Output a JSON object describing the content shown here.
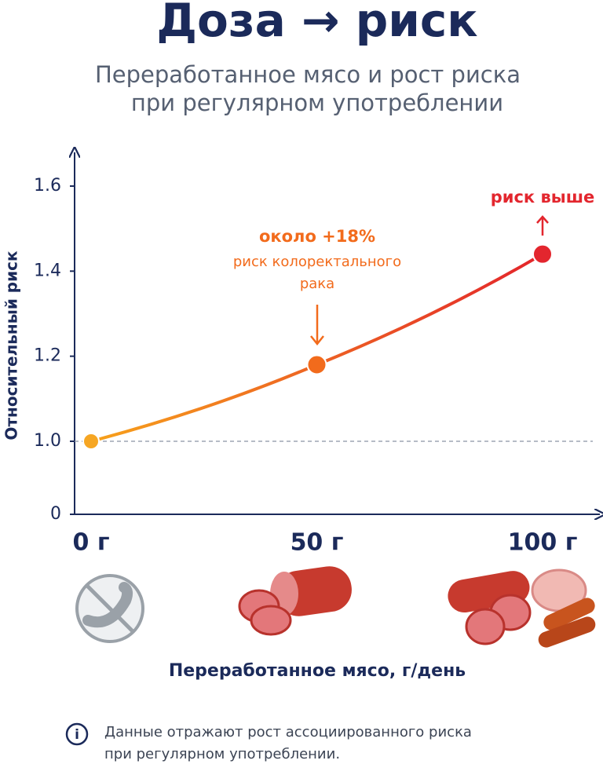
{
  "chart_data": {
    "type": "line",
    "title": "Доза → риск",
    "subtitle": [
      "Переработанное мясо и рост риска",
      "при регулярном употреблении"
    ],
    "y_label": "Относительный риск",
    "x_label": "Переработанное мясо, г/день",
    "categories": [
      "0 г",
      "50 г",
      "100 г"
    ],
    "series": [
      {
        "name": "Относительный риск",
        "color": [
          "#f7a21b",
          "#e3242b"
        ],
        "point_colors": [
          "#f6a623",
          "#f26b1c",
          "#e3262e"
        ],
        "values": [
          1,
          1.18,
          1.44
        ]
      }
    ],
    "ylim": [
      0,
      1.7
    ],
    "yticks": [
      0,
      {
        "value": 1,
        "label": "1.0"
      },
      1.2,
      1.4,
      1.6
    ],
    "axis_break": true,
    "reference_line": 1,
    "annotations": [
      {
        "lines": [
          "около +18%",
          "риск колоректального",
          "рака"
        ],
        "color": "#f26b1c"
      },
      {
        "lines": [
          "риск выше"
        ],
        "color": "#e3262e"
      }
    ],
    "note": [
      "Данные отражают рост ассоциированного риска",
      "при регулярном употреблении."
    ]
  }
}
